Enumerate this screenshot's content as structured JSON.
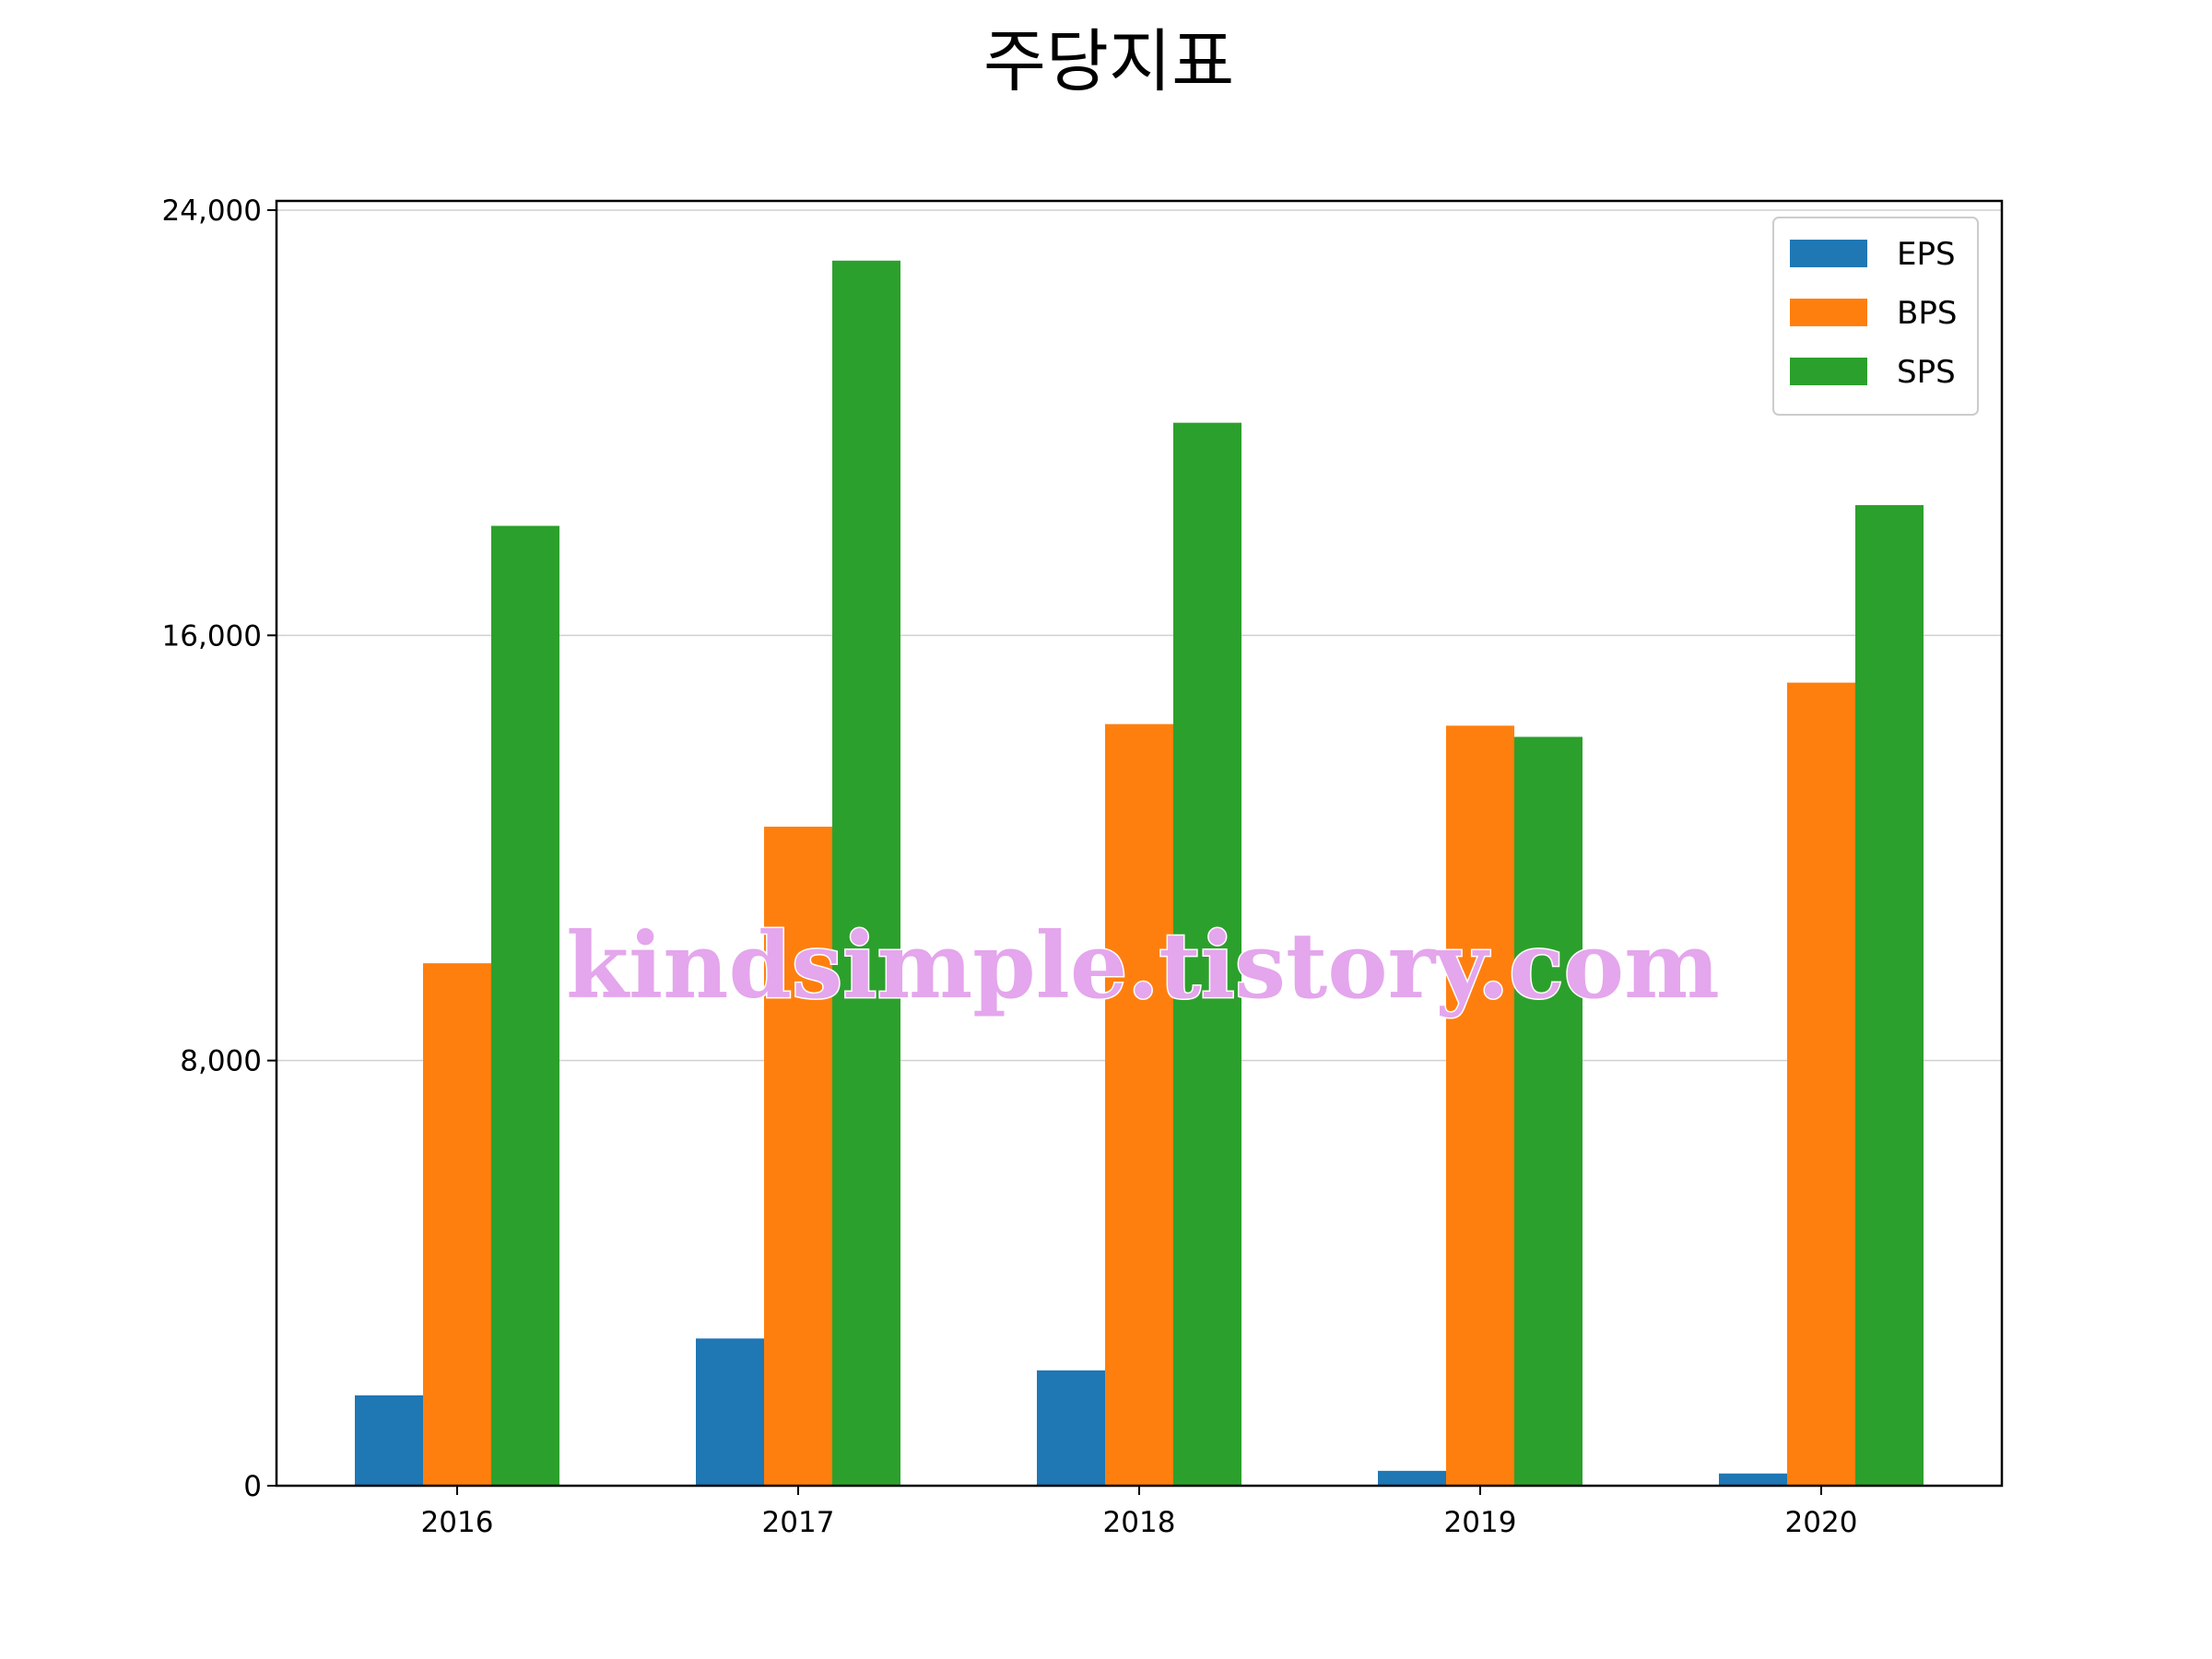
{
  "chart_data": {
    "type": "bar",
    "title": "주당지표",
    "xlabel": "",
    "ylabel": "",
    "categories": [
      "2016",
      "2017",
      "2018",
      "2019",
      "2020"
    ],
    "series": [
      {
        "name": "EPS",
        "color": "#1f77b4",
        "values": [
          1700,
          2770,
          2170,
          280,
          230
        ]
      },
      {
        "name": "BPS",
        "color": "#ff7f0e",
        "values": [
          9830,
          12400,
          14330,
          14300,
          15110
        ]
      },
      {
        "name": "SPS",
        "color": "#2ca02c",
        "values": [
          18060,
          23050,
          20000,
          14090,
          18450
        ]
      }
    ],
    "ylim": [
      0,
      24000
    ],
    "yticks": [
      {
        "value": 0,
        "label": "0"
      },
      {
        "value": 8000,
        "label": "8,000"
      },
      {
        "value": 16000,
        "label": "16,000"
      },
      {
        "value": 24000,
        "label": "24,000"
      }
    ],
    "grid": "y-major",
    "legend_position": "top-right",
    "watermark": "kindsimple.tistory.com"
  }
}
